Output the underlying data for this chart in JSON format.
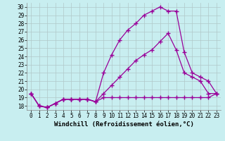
{
  "xlabel": "Windchill (Refroidissement éolien,°C)",
  "xlim": [
    -0.5,
    23.5
  ],
  "ylim": [
    17.5,
    30.5
  ],
  "yticks": [
    18,
    19,
    20,
    21,
    22,
    23,
    24,
    25,
    26,
    27,
    28,
    29,
    30
  ],
  "xticks": [
    0,
    1,
    2,
    3,
    4,
    5,
    6,
    7,
    8,
    9,
    10,
    11,
    12,
    13,
    14,
    15,
    16,
    17,
    18,
    19,
    20,
    21,
    22,
    23
  ],
  "bg_color": "#c8eef0",
  "line_color": "#990099",
  "grid_color": "#b0c8c8",
  "line1_x": [
    0,
    1,
    2,
    3,
    4,
    5,
    6,
    7,
    8,
    9,
    10,
    11,
    12,
    13,
    14,
    15,
    16,
    17,
    18,
    19,
    20,
    21,
    22,
    23
  ],
  "line1_y": [
    19.5,
    18.0,
    17.8,
    18.3,
    18.8,
    18.8,
    18.8,
    18.8,
    18.5,
    22.0,
    24.2,
    26.0,
    27.2,
    28.0,
    29.0,
    29.5,
    30.0,
    29.5,
    29.5,
    24.5,
    22.0,
    21.5,
    21.0,
    19.5
  ],
  "line2_x": [
    0,
    1,
    2,
    3,
    4,
    5,
    6,
    7,
    8,
    9,
    10,
    11,
    12,
    13,
    14,
    15,
    16,
    17,
    18,
    19,
    20,
    21,
    22,
    23
  ],
  "line2_y": [
    19.5,
    18.0,
    17.8,
    18.3,
    18.8,
    18.8,
    18.8,
    18.8,
    18.5,
    19.0,
    19.0,
    19.0,
    19.0,
    19.0,
    19.0,
    19.0,
    19.0,
    19.0,
    19.0,
    19.0,
    19.0,
    19.0,
    19.0,
    19.5
  ],
  "line3_x": [
    0,
    1,
    2,
    3,
    4,
    5,
    6,
    7,
    8,
    9,
    10,
    11,
    12,
    13,
    14,
    15,
    16,
    17,
    18,
    19,
    20,
    21,
    22,
    23
  ],
  "line3_y": [
    19.5,
    18.0,
    17.8,
    18.3,
    18.8,
    18.8,
    18.8,
    18.8,
    18.5,
    19.5,
    20.5,
    21.5,
    22.5,
    23.5,
    24.2,
    24.8,
    25.8,
    26.8,
    24.8,
    22.0,
    21.5,
    21.0,
    19.5,
    19.5
  ],
  "marker": "+",
  "markersize": 4,
  "linewidth": 0.9,
  "tick_fontsize": 5.5,
  "label_fontsize": 6.5
}
